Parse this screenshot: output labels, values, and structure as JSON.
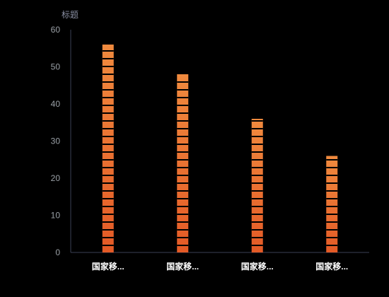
{
  "chart_data": {
    "type": "bar",
    "ylabel": "标题",
    "categories": [
      "国家移...",
      "国家移...",
      "国家移...",
      "国家移..."
    ],
    "values": [
      56,
      48,
      36,
      26
    ],
    "ylim": [
      0,
      60
    ],
    "yticks": [
      0,
      10,
      20,
      30,
      40,
      50,
      60
    ],
    "grid": false,
    "legend": "none",
    "colors": {
      "bar_top": "#f08a3e",
      "bar_bottom": "#e45a26",
      "segment_gap": "#000000",
      "axis": "#3a3f55",
      "tick_text": "#9aa0a6",
      "title_text": "#8a8fa3",
      "category_text": "#ffffff"
    }
  }
}
